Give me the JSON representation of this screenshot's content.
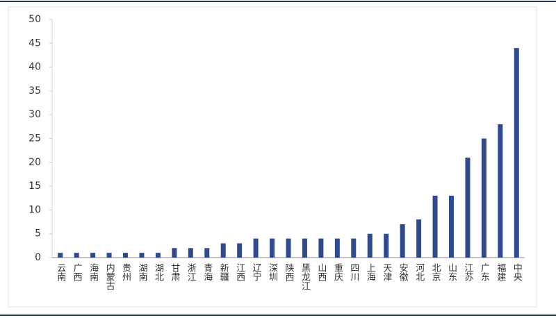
{
  "chart_data": {
    "type": "bar",
    "categories": [
      "云南",
      "广西",
      "海南",
      "内蒙古",
      "贵州",
      "湖南",
      "湖北",
      "甘肃",
      "浙江",
      "青海",
      "新疆",
      "江西",
      "辽宁",
      "深圳",
      "陕西",
      "黑龙江",
      "山西",
      "重庆",
      "四川",
      "上海",
      "天津",
      "安徽",
      "河北",
      "北京",
      "山东",
      "江苏",
      "广东",
      "福建",
      "中央"
    ],
    "values": [
      1,
      1,
      1,
      1,
      1,
      1,
      1,
      2,
      2,
      2,
      3,
      3,
      4,
      4,
      4,
      4,
      4,
      4,
      4,
      5,
      5,
      7,
      8,
      13,
      13,
      21,
      25,
      28,
      44
    ],
    "color": "#2f4a8f",
    "ylim": [
      0,
      50
    ],
    "yticks": [
      0,
      5,
      10,
      15,
      20,
      25,
      30,
      35,
      40,
      45,
      50
    ],
    "grid": false
  }
}
